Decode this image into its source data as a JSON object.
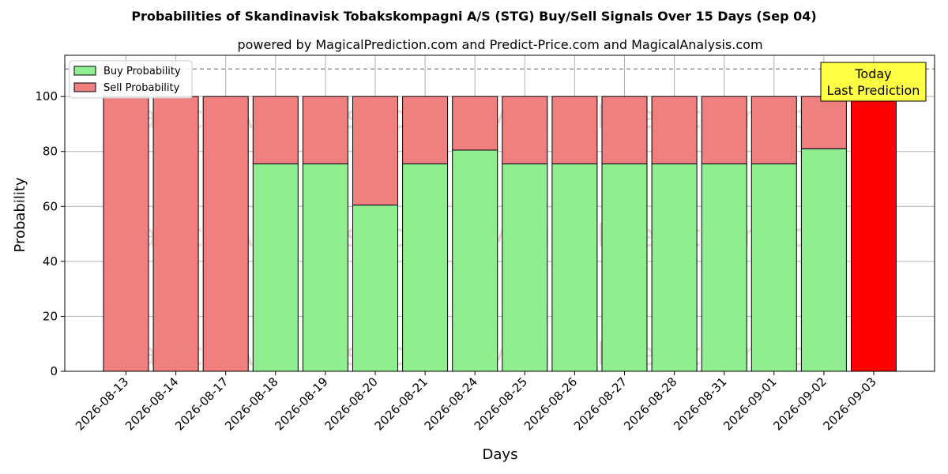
{
  "chart_data": {
    "type": "bar",
    "stacked": true,
    "title": "Probabilities of Skandinavisk Tobakskompagni A/S (STG) Buy/Sell Signals Over 15 Days (Sep 04)",
    "subtitle": "powered by MagicalPrediction.com and Predict-Price.com and MagicalAnalysis.com",
    "xlabel": "Days",
    "ylabel": "Probability",
    "ylim": [
      0,
      115
    ],
    "yticks": [
      0,
      20,
      40,
      60,
      80,
      100
    ],
    "grid": true,
    "legend_position": "top-left",
    "reference_line": 110,
    "categories": [
      "2026-08-13",
      "2026-08-14",
      "2026-08-17",
      "2026-08-18",
      "2026-08-19",
      "2026-08-20",
      "2026-08-21",
      "2026-08-24",
      "2026-08-25",
      "2026-08-26",
      "2026-08-27",
      "2026-08-28",
      "2026-08-31",
      "2026-09-01",
      "2026-09-02",
      "2026-09-03"
    ],
    "series": [
      {
        "name": "Buy Probability",
        "color": "#90ee90",
        "values": [
          0,
          0,
          0,
          75.5,
          75.5,
          60.5,
          75.5,
          80.5,
          75.5,
          75.5,
          75.5,
          75.5,
          75.5,
          75.5,
          81,
          0
        ]
      },
      {
        "name": "Sell Probability",
        "color": "#f08080",
        "values": [
          100,
          100,
          100,
          24.5,
          24.5,
          39.5,
          24.5,
          19.5,
          24.5,
          24.5,
          24.5,
          24.5,
          24.5,
          24.5,
          19,
          100
        ]
      }
    ],
    "highlight": {
      "index": 15,
      "color": "#ff0000"
    },
    "annotation": {
      "lines": [
        "Today",
        "Last Prediction"
      ],
      "background": "#ffff44"
    },
    "watermarks": [
      "MagicalAnalysis.com",
      "MagicalPrediction.com"
    ]
  }
}
